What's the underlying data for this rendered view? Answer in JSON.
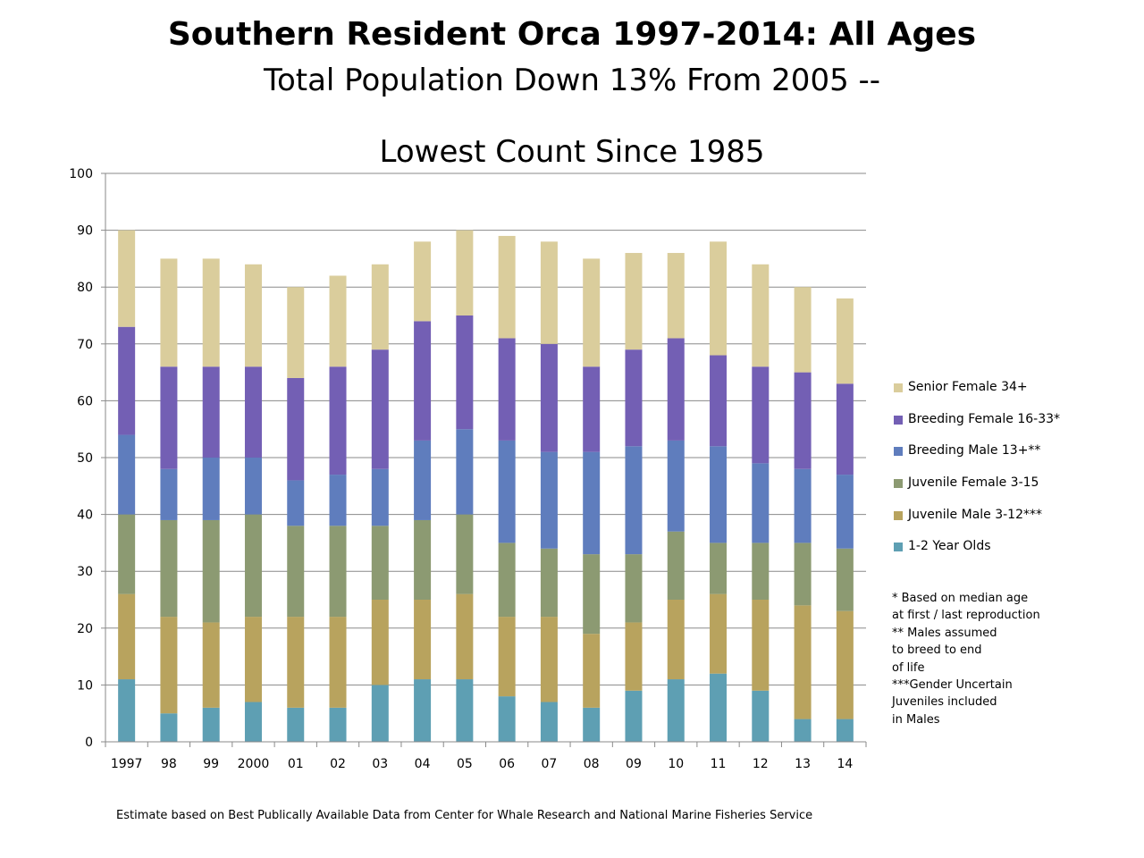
{
  "title": "Southern Resident Orca 1997-2014:  All Ages",
  "subtitle": "Total Population Down 13% From 2005 --",
  "chart_data": {
    "type": "bar",
    "stacked": true,
    "title": "Lowest Count Since 1985",
    "xlabel": "",
    "ylabel": "",
    "ylim": [
      0,
      100
    ],
    "yticks": [
      0,
      10,
      20,
      30,
      40,
      50,
      60,
      70,
      80,
      90,
      100
    ],
    "grid": "horizontal",
    "legend_position": "right",
    "categories": [
      "1997",
      "98",
      "99",
      "2000",
      "01",
      "02",
      "03",
      "04",
      "05",
      "06",
      "07",
      "08",
      "09",
      "10",
      "11",
      "12",
      "13",
      "14"
    ],
    "series": [
      {
        "name": "1-2 Year Olds",
        "color": "#5E9FB3",
        "values": [
          11,
          5,
          6,
          7,
          6,
          6,
          10,
          11,
          11,
          8,
          7,
          6,
          9,
          11,
          12,
          9,
          4,
          4
        ]
      },
      {
        "name": "Juvenile Male 3-12***",
        "color": "#B8A35E",
        "values": [
          15,
          17,
          15,
          15,
          16,
          16,
          15,
          14,
          15,
          14,
          15,
          13,
          12,
          14,
          14,
          16,
          20,
          19
        ]
      },
      {
        "name": "Juvenile Female 3-15",
        "color": "#8C9A72",
        "values": [
          14,
          17,
          18,
          18,
          16,
          16,
          13,
          14,
          14,
          13,
          12,
          14,
          12,
          12,
          9,
          10,
          11,
          11
        ]
      },
      {
        "name": "Breeding Male 13+**",
        "color": "#5F7DBD",
        "values": [
          14,
          9,
          11,
          10,
          8,
          9,
          10,
          14,
          15,
          18,
          17,
          18,
          19,
          16,
          17,
          14,
          13,
          13
        ]
      },
      {
        "name": "Breeding Female 16-33*",
        "color": "#735FB4",
        "values": [
          19,
          18,
          16,
          16,
          18,
          19,
          21,
          21,
          20,
          18,
          19,
          15,
          17,
          18,
          16,
          17,
          17,
          16
        ]
      },
      {
        "name": "Senior Female 34+",
        "color": "#DACD9C",
        "values": [
          17,
          19,
          19,
          18,
          16,
          16,
          15,
          14,
          15,
          18,
          18,
          19,
          17,
          15,
          20,
          18,
          15,
          15
        ]
      }
    ]
  },
  "notes": [
    "* Based on median age",
    "at first / last reproduction",
    "** Males assumed",
    "to breed to end",
    "of life",
    "***Gender Uncertain",
    "Juveniles included",
    "in Males"
  ],
  "footer": "Estimate based on Best Publically Available Data from Center for Whale Research and National Marine Fisheries Service"
}
